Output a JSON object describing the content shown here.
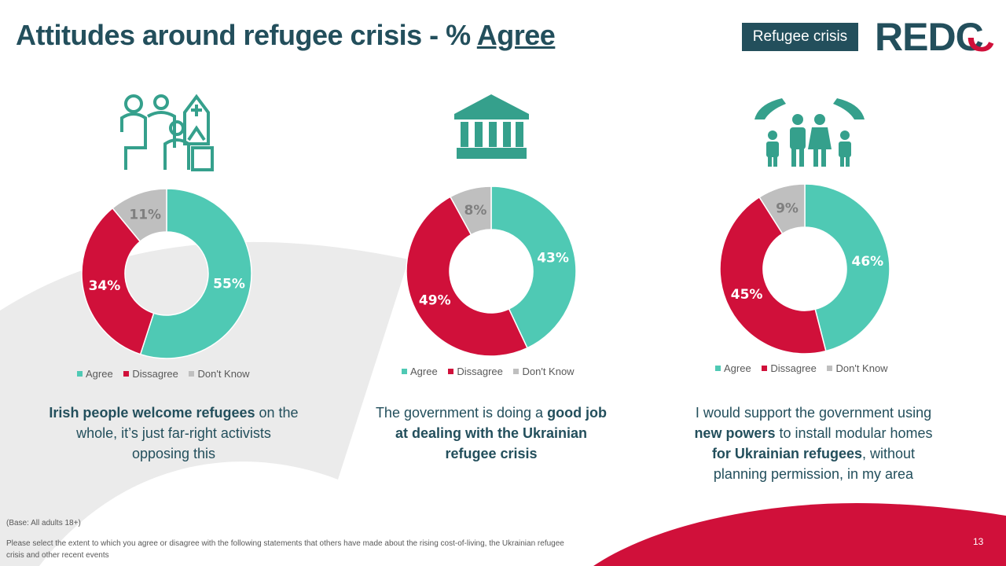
{
  "header": {
    "title_prefix": "Attitudes around refugee crisis - % ",
    "title_emph": "Agree",
    "badge": "Refugee crisis",
    "logo": "REDC"
  },
  "colors": {
    "agree": "#4fc9b4",
    "disagree": "#d0103a",
    "dont_know": "#bfbfbf",
    "brand": "#234f5c",
    "icon": "#35a08c"
  },
  "chart_data": [
    {
      "type": "pie",
      "subtype": "donut",
      "categories": [
        "Agree",
        "Dissagree",
        "Don't Know"
      ],
      "values": [
        55,
        34,
        11
      ],
      "legend": "bottom",
      "statement": {
        "bold1": "Irish people welcome refugees",
        "text1": " on the whole, it’s just far-right activists opposing this",
        "bold2": "",
        "text2": "",
        "bold3": "",
        "text3": ""
      }
    },
    {
      "type": "pie",
      "subtype": "donut",
      "categories": [
        "Agree",
        "Dissagree",
        "Don't Know"
      ],
      "values": [
        43,
        49,
        8
      ],
      "legend": "bottom",
      "statement": {
        "bold1": "",
        "text1": "The government is doing a ",
        "bold2": "good job at dealing with the Ukrainian refugee crisis",
        "text2": "",
        "bold3": "",
        "text3": ""
      }
    },
    {
      "type": "pie",
      "subtype": "donut",
      "categories": [
        "Agree",
        "Dissagree",
        "Don't Know"
      ],
      "values": [
        46,
        45,
        9
      ],
      "legend": "bottom",
      "statement": {
        "bold1": "",
        "text1": "I would support the government using ",
        "bold2": "new powers",
        "text2": " to install modular homes ",
        "bold3": "for Ukrainian refugees",
        "text3": ", without planning permission, in my area"
      }
    }
  ],
  "icons": [
    "refugee-family-icon",
    "government-building-icon",
    "protected-family-icon"
  ],
  "footer": {
    "base": "(Base: All adults 18+)",
    "question": "Please select the extent to which you agree or disagree with the following statements that others have made about the rising cost-of-living, the Ukrainian refugee crisis and other recent events",
    "page": "13"
  }
}
